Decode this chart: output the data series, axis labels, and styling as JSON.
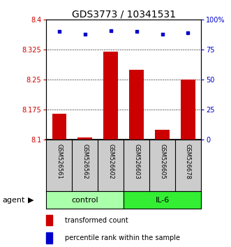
{
  "title": "GDS3773 / 10341531",
  "samples": [
    "GSM526561",
    "GSM526562",
    "GSM526602",
    "GSM526603",
    "GSM526605",
    "GSM526678"
  ],
  "bar_values": [
    8.165,
    8.105,
    8.32,
    8.275,
    8.125,
    8.25
  ],
  "bar_base": 8.1,
  "percentile_values": [
    90,
    88,
    91,
    90,
    88,
    89
  ],
  "percentile_scale": 100,
  "ylim": [
    8.1,
    8.4
  ],
  "yticks": [
    8.1,
    8.175,
    8.25,
    8.325,
    8.4
  ],
  "ytick_labels": [
    "8.1",
    "8.175",
    "8.25",
    "8.325",
    "8.4"
  ],
  "y2ticks": [
    0,
    25,
    50,
    75,
    100
  ],
  "y2tick_labels": [
    "0",
    "25",
    "50",
    "75",
    "100%"
  ],
  "bar_color": "#cc0000",
  "dot_color": "#0000cc",
  "group1_label": "control",
  "group1_color": "#aaffaa",
  "group2_label": "IL-6",
  "group2_color": "#33ee33",
  "agent_label": "agent",
  "legend_bar_label": "transformed count",
  "legend_dot_label": "percentile rank within the sample",
  "left_tick_color": "#cc0000",
  "right_tick_color": "#0000cc",
  "sample_box_color": "#cccccc",
  "title_fontsize": 10,
  "tick_fontsize": 7,
  "sample_fontsize": 6,
  "group_fontsize": 8,
  "legend_fontsize": 7,
  "agent_fontsize": 8
}
